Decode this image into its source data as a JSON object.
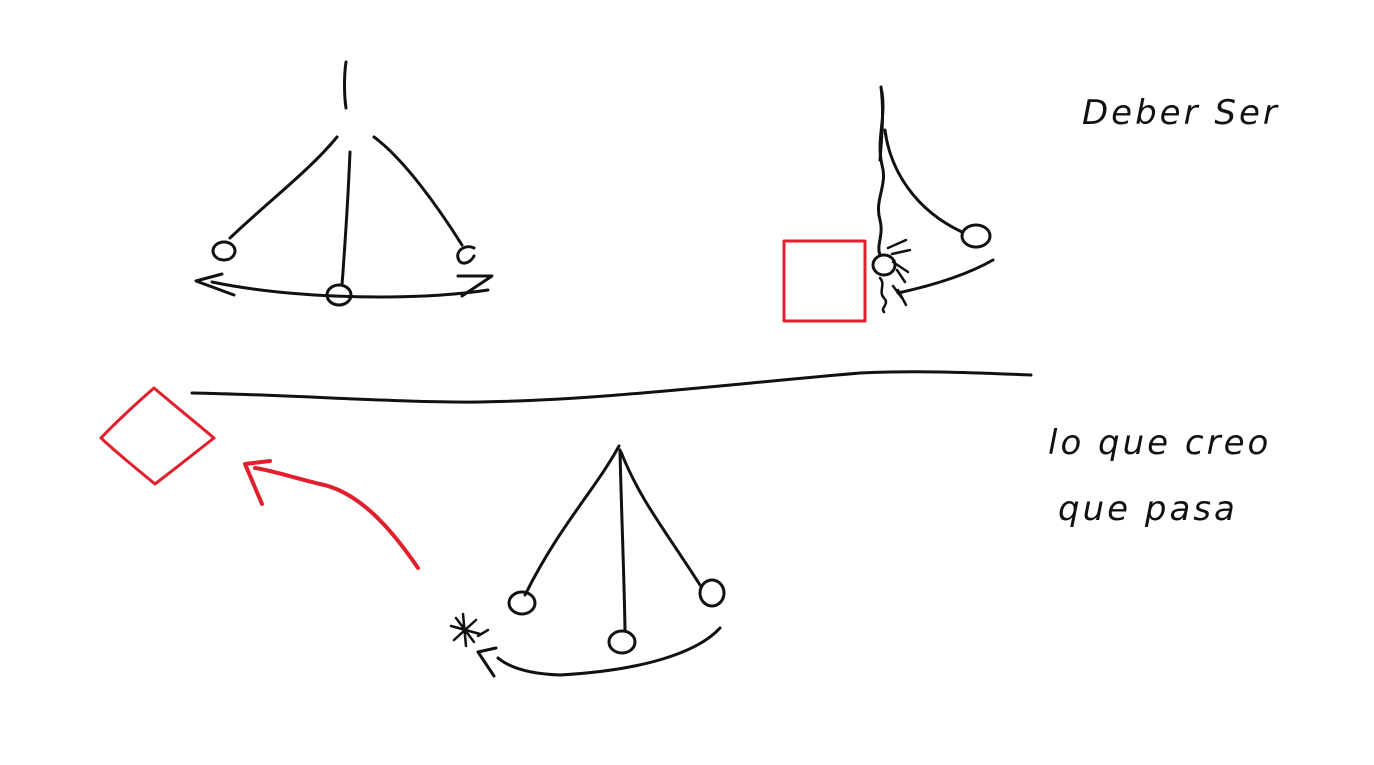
{
  "colors": {
    "background": "#ffffff",
    "ink": "#111111",
    "highlight": "#e0202c"
  },
  "labels": {
    "top": "Deber Ser",
    "bottom_line1": "lo que creo",
    "bottom_line2": "que pasa"
  }
}
